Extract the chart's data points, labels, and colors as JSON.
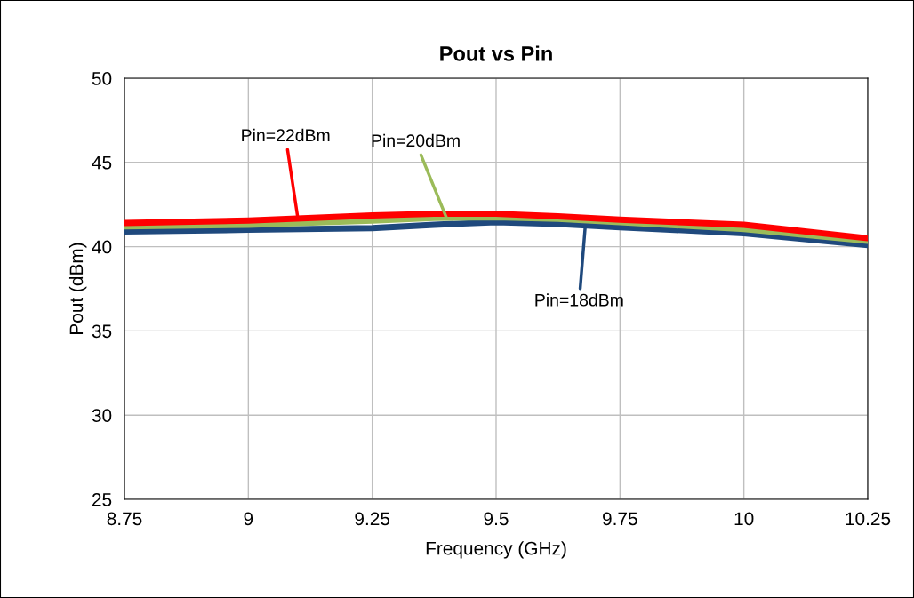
{
  "chart_data": {
    "type": "line",
    "title": "Pout vs Pin",
    "xlabel": "Frequency (GHz)",
    "ylabel": "Pout (dBm)",
    "x": [
      8.75,
      9.0,
      9.25,
      9.375,
      9.5,
      9.625,
      9.75,
      10.0,
      10.25
    ],
    "series": [
      {
        "color": "#ff0000",
        "values": [
          41.4,
          41.55,
          41.85,
          41.95,
          41.95,
          41.8,
          41.6,
          41.3,
          40.5
        ]
      },
      {
        "color": "#9bbb59",
        "values": [
          41.2,
          41.3,
          41.55,
          41.7,
          41.75,
          41.65,
          41.45,
          41.05,
          40.35
        ]
      },
      {
        "color": "#1f497d",
        "values": [
          40.9,
          41.0,
          41.1,
          41.3,
          41.45,
          41.35,
          41.15,
          40.8,
          40.1
        ]
      }
    ],
    "xlim": [
      8.75,
      10.25
    ],
    "xticks": [
      8.75,
      9,
      9.25,
      9.5,
      9.75,
      10,
      10.25
    ],
    "ylim": [
      25,
      50
    ],
    "yticks": [
      25,
      30,
      35,
      40,
      45,
      50
    ],
    "grid": true,
    "legend": false,
    "marker": "none",
    "line_style": "solid",
    "annotations": [
      {
        "text": "Pin=22dBm",
        "x": 9.1,
        "y": 41.65
      },
      {
        "text": "Pin=20dBm",
        "x": 9.4,
        "y": 41.7
      },
      {
        "text": "Pin=18dBm",
        "x": 9.68,
        "y": 41.25
      }
    ]
  }
}
